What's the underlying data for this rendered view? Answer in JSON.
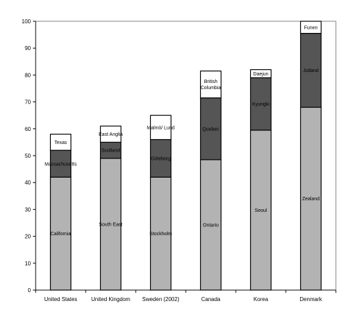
{
  "chart_data": {
    "type": "bar",
    "stacked": true,
    "title": "",
    "xlabel": "",
    "ylabel": "",
    "ylim": [
      0,
      100
    ],
    "yticks": [
      0,
      10,
      20,
      30,
      40,
      50,
      60,
      70,
      80,
      90,
      100
    ],
    "grid": false,
    "legend": "none",
    "colors": {
      "bottom": "#b3b3b3",
      "middle": "#555555",
      "top": "#ffffff",
      "outline": "#000000"
    },
    "categories": [
      "United States",
      "United Kingdom",
      "Sweden (2002)",
      "Canada",
      "Korea",
      "Denmark"
    ],
    "stacks": [
      {
        "segments": [
          {
            "label": "California",
            "value": 42
          },
          {
            "label": "Massachusetts",
            "value": 10
          },
          {
            "label": "Texas",
            "value": 6
          }
        ]
      },
      {
        "segments": [
          {
            "label": "South East",
            "value": 49
          },
          {
            "label": "Scotland",
            "value": 6
          },
          {
            "label": "East Anglia",
            "value": 6
          }
        ]
      },
      {
        "segments": [
          {
            "label": "Stockholm",
            "value": 42
          },
          {
            "label": "Göteborg",
            "value": 14
          },
          {
            "label": "Malmö/ Lund",
            "value": 9
          }
        ]
      },
      {
        "segments": [
          {
            "label": "Ontario",
            "value": 48.5
          },
          {
            "label": "Quebec",
            "value": 23
          },
          {
            "label": "British Columbia",
            "value": 10
          }
        ]
      },
      {
        "segments": [
          {
            "label": "Seoul",
            "value": 59.5
          },
          {
            "label": "Kyungki",
            "value": 19.5
          },
          {
            "label": "Daejun",
            "value": 3
          }
        ]
      },
      {
        "segments": [
          {
            "label": "Zealand",
            "value": 68
          },
          {
            "label": "Jutland",
            "value": 27.5
          },
          {
            "label": "Funen",
            "value": 4.5
          }
        ]
      }
    ]
  }
}
